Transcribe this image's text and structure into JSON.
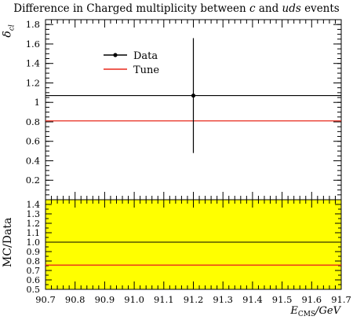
{
  "chart_data": {
    "type": "scatter",
    "title_parts": [
      {
        "text": "Difference in Charged multiplicity between ",
        "italic": false
      },
      {
        "text": "c",
        "italic": true
      },
      {
        "text": " and ",
        "italic": false
      },
      {
        "text": "uds",
        "italic": true
      },
      {
        "text": " events",
        "italic": false
      }
    ],
    "ylabel": "δ",
    "ylabel_sub": "cl",
    "ratio_ylabel": "MC/Data",
    "xlabel": "E",
    "xlabel_sub": "CMS",
    "xlabel_unit": "/GeV",
    "xlim": [
      90.7,
      91.7
    ],
    "ylim": [
      0.0,
      1.85
    ],
    "ratio_ylim": [
      0.5,
      1.45
    ],
    "x_ticks": [
      "90.7",
      "90.8",
      "90.9",
      "91.0",
      "91.1",
      "91.2",
      "91.3",
      "91.4",
      "91.5",
      "91.6",
      "91.7"
    ],
    "y_ticks": [
      "0.2",
      "0.4",
      "0.6",
      "0.8",
      "1",
      "1.2",
      "1.4",
      "1.6",
      "1.8"
    ],
    "ratio_y_ticks": [
      "0.5",
      "0.6",
      "0.7",
      "0.8",
      "0.9",
      "1.0",
      "1.1",
      "1.2",
      "1.3",
      "1.4"
    ],
    "legend": {
      "placement": "top-left"
    },
    "series": [
      {
        "name": "Data",
        "style": "points",
        "color": "#000000",
        "x": [
          91.2
        ],
        "y": [
          1.07
        ],
        "yerr_low": [
          0.48
        ],
        "yerr_high": [
          1.66
        ],
        "band_x": [
          90.7,
          91.7
        ]
      },
      {
        "name": "Tune",
        "style": "line",
        "color": "#e8291c",
        "x": [
          90.7,
          91.7
        ],
        "y": [
          0.81,
          0.81
        ]
      }
    ],
    "ratio": {
      "band_color": "#ffff00",
      "band_y": [
        0.5,
        1.45
      ],
      "reference_line": 1.0,
      "tune_ratio": 0.757
    }
  }
}
